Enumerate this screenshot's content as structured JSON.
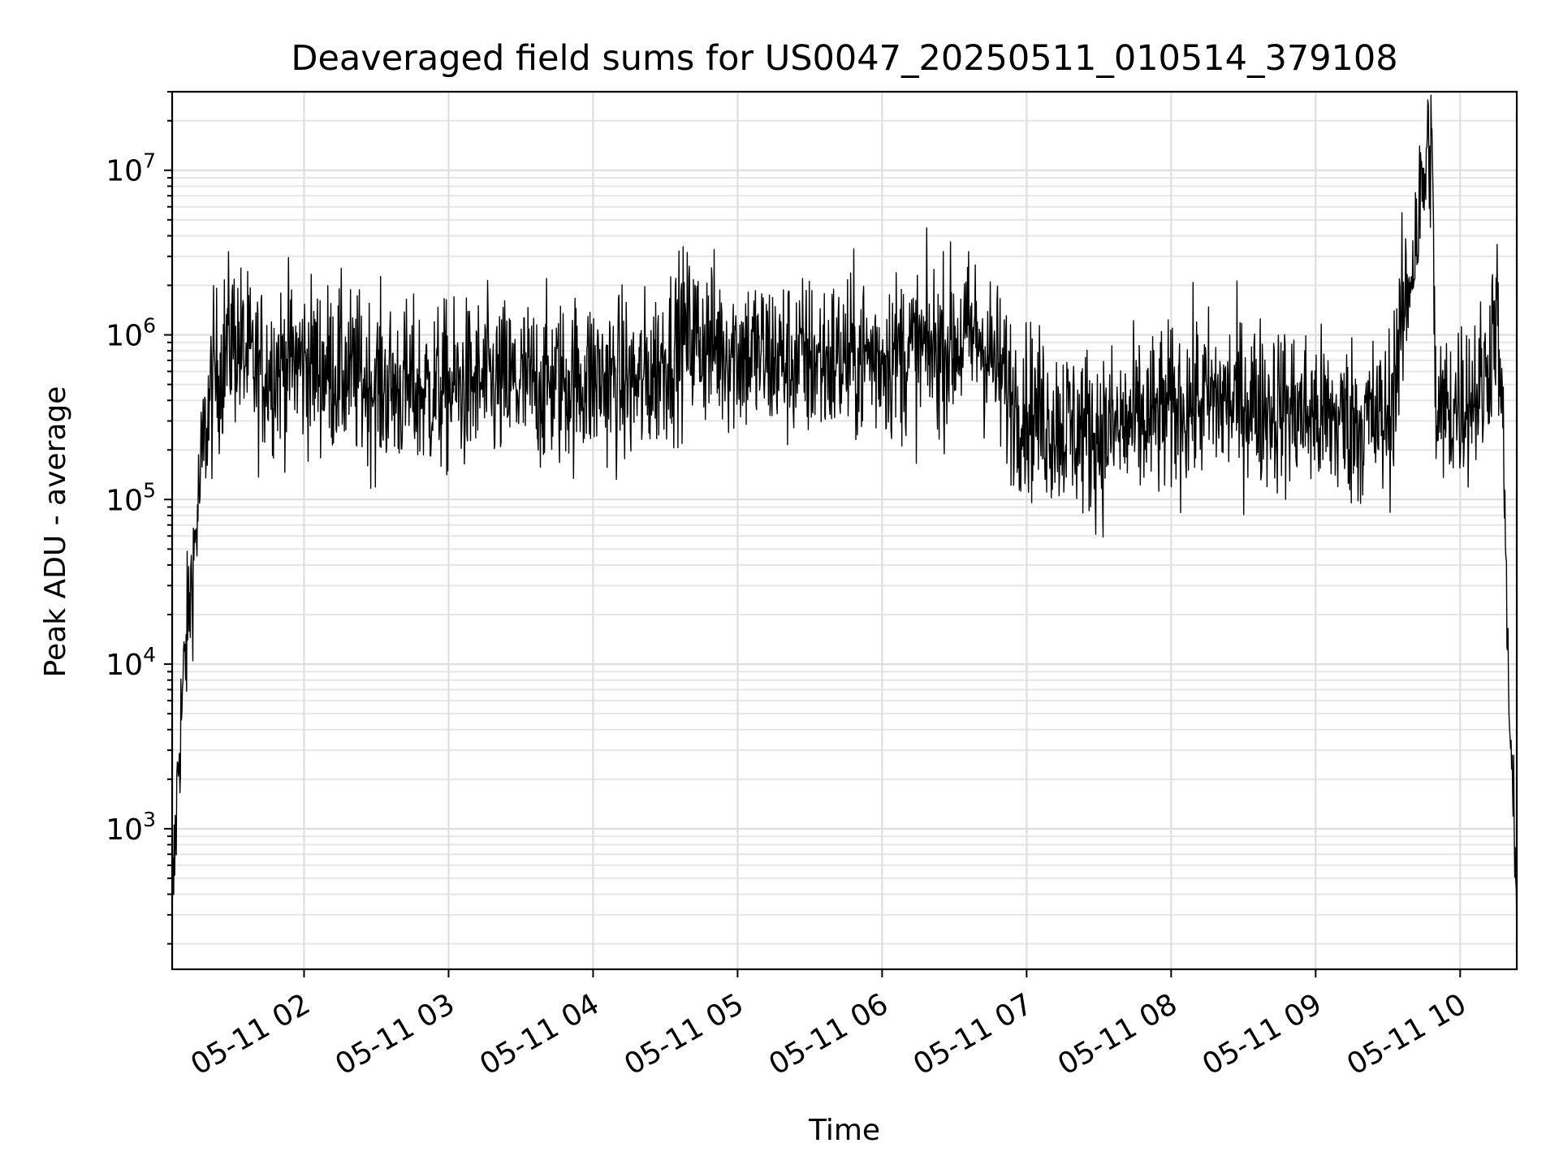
{
  "chart_data": {
    "type": "line",
    "title": "Deaveraged field sums for US0047_20250511_010514_379108",
    "xlabel": "Time",
    "ylabel": "Peak ADU - average",
    "yscale": "log",
    "ylim": [
      140,
      30000000
    ],
    "xlim": [
      "2025-05-11 01:05:14",
      "2025-05-11 10:23:30"
    ],
    "grid": true,
    "line_color": "#000000",
    "x_ticks": [
      "05-11 02",
      "05-11 03",
      "05-11 04",
      "05-11 05",
      "05-11 06",
      "05-11 07",
      "05-11 08",
      "05-11 09",
      "05-11 10"
    ],
    "y_ticks": [
      {
        "base": "10",
        "exp": "3",
        "value": 1000
      },
      {
        "base": "10",
        "exp": "4",
        "value": 10000
      },
      {
        "base": "10",
        "exp": "5",
        "value": 100000
      },
      {
        "base": "10",
        "exp": "6",
        "value": 1000000
      },
      {
        "base": "10",
        "exp": "7",
        "value": 10000000
      }
    ],
    "series": [
      {
        "x": [
          "2025-05-11 01:05:14",
          "2025-05-11 01:08:00",
          "2025-05-11 01:12:00",
          "2025-05-11 01:15:00",
          "2025-05-11 01:18:00",
          "2025-05-11 01:22:00",
          "2025-05-11 01:30:00",
          "2025-05-11 01:40:00",
          "2025-05-11 01:55:00",
          "2025-05-11 02:15:00",
          "2025-05-11 02:30:00",
          "2025-05-11 02:50:00",
          "2025-05-11 03:15:00",
          "2025-05-11 03:40:00",
          "2025-05-11 04:00:00",
          "2025-05-11 04:20:00",
          "2025-05-11 04:38:00",
          "2025-05-11 05:00:00",
          "2025-05-11 05:20:00",
          "2025-05-11 05:40:00",
          "2025-05-11 06:00:00",
          "2025-05-11 06:20:00",
          "2025-05-11 06:40:00",
          "2025-05-11 06:55:00",
          "2025-05-11 07:10:00",
          "2025-05-11 07:30:00",
          "2025-05-11 07:50:00",
          "2025-05-11 08:10:00",
          "2025-05-11 08:30:00",
          "2025-05-11 08:50:00",
          "2025-05-11 09:10:00",
          "2025-05-11 09:30:00",
          "2025-05-11 09:48:00",
          "2025-05-11 09:50:00",
          "2025-05-11 10:00:00",
          "2025-05-11 10:10:00",
          "2025-05-11 10:15:00",
          "2025-05-11 10:18:00",
          "2025-05-11 10:20:00",
          "2025-05-11 10:23:30"
        ],
        "values": [
          270,
          3000,
          20000,
          60000,
          200000,
          500000,
          1000000,
          600000,
          700000,
          600000,
          500000,
          450000,
          500000,
          500000,
          550000,
          500000,
          1000000,
          800000,
          700000,
          700000,
          750000,
          800000,
          1000000,
          400000,
          300000,
          250000,
          300000,
          400000,
          400000,
          350000,
          300000,
          300000,
          17000000,
          300000,
          400000,
          500000,
          1500000,
          200000,
          8000,
          270
        ]
      }
    ]
  }
}
